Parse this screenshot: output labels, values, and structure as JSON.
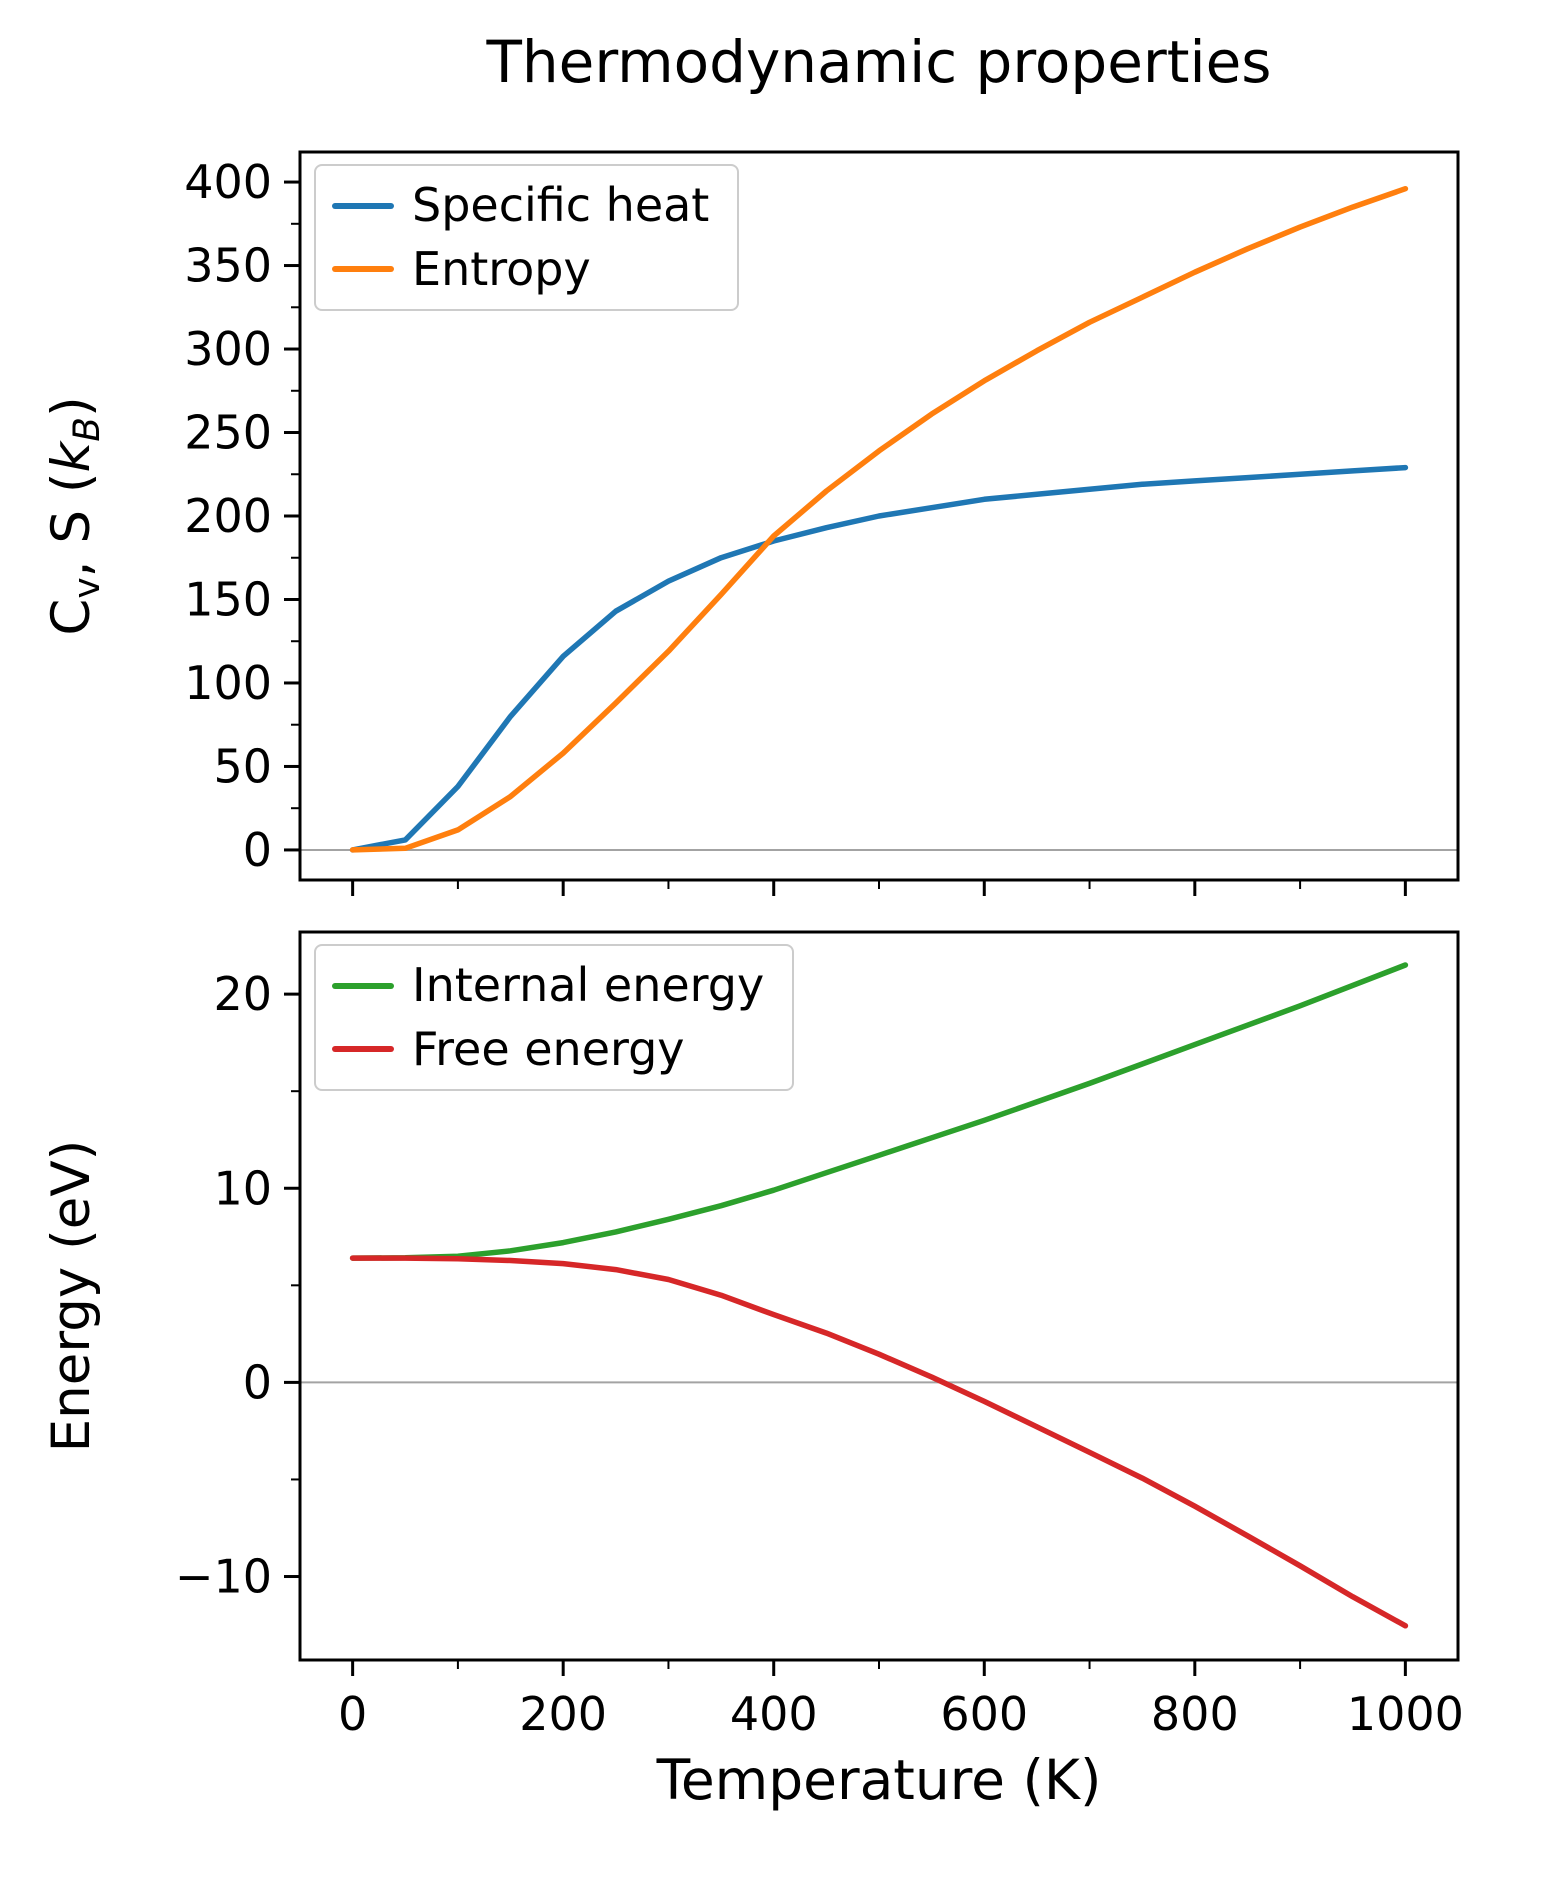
{
  "figure": {
    "title": "Thermodynamic properties",
    "xlabel": "Temperature (K)",
    "background": "#ffffff"
  },
  "chart_data": [
    {
      "type": "line",
      "title": "Thermodynamic properties",
      "xlabel": "",
      "ylabel": "C_v, S (k_B)",
      "ylabel_rich": [
        {
          "t": "C"
        },
        {
          "t": "v",
          "sub": true
        },
        {
          "t": ", S ("
        },
        {
          "t": "k",
          "italic": true
        },
        {
          "t": "B",
          "sub": true,
          "italic": true
        },
        {
          "t": ")"
        }
      ],
      "x": [
        0,
        50,
        100,
        150,
        200,
        250,
        300,
        350,
        400,
        450,
        500,
        550,
        600,
        650,
        700,
        750,
        800,
        850,
        900,
        950,
        1000
      ],
      "series": [
        {
          "name": "Specific heat",
          "color": "#1f77b4",
          "values": [
            0,
            6,
            38,
            80,
            116,
            143,
            161,
            175,
            185,
            193,
            200,
            205,
            210,
            213,
            216,
            219,
            221,
            223,
            225,
            227,
            229
          ]
        },
        {
          "name": "Entropy",
          "color": "#ff7f0e",
          "values": [
            0,
            1,
            12,
            32,
            58,
            88,
            119,
            153,
            188,
            215,
            239,
            261,
            281,
            299,
            316,
            331,
            346,
            360,
            373,
            385,
            396
          ]
        }
      ],
      "xlim": [
        -50,
        1050
      ],
      "ylim": [
        -18,
        418
      ],
      "xticks": [
        0,
        200,
        400,
        600,
        800,
        1000
      ],
      "yticks": [
        0,
        50,
        100,
        150,
        200,
        250,
        300,
        350,
        400
      ],
      "show_x_tick_labels": false,
      "legend": {
        "position": "upper-left",
        "entries": [
          "Specific heat",
          "Entropy"
        ]
      },
      "zero_line": true,
      "zero_line_color": "#a3a3a3",
      "grid": false
    },
    {
      "type": "line",
      "title": "",
      "xlabel": "Temperature (K)",
      "ylabel": "Energy (eV)",
      "ylabel_rich": [
        {
          "t": "Energy (eV)"
        }
      ],
      "x": [
        0,
        50,
        100,
        150,
        200,
        250,
        300,
        350,
        400,
        450,
        500,
        550,
        600,
        650,
        700,
        750,
        800,
        850,
        900,
        950,
        1000
      ],
      "series": [
        {
          "name": "Internal energy",
          "color": "#2ca02c",
          "values": [
            6.4,
            6.42,
            6.5,
            6.78,
            7.2,
            7.75,
            8.4,
            9.1,
            9.9,
            10.8,
            11.7,
            12.6,
            13.5,
            14.45,
            15.4,
            16.4,
            17.4,
            18.4,
            19.4,
            20.45,
            21.5
          ]
        },
        {
          "name": "Free energy",
          "color": "#d62728",
          "values": [
            6.4,
            6.4,
            6.37,
            6.28,
            6.12,
            5.81,
            5.3,
            4.49,
            3.49,
            2.54,
            1.45,
            0.28,
            -0.98,
            -2.29,
            -3.6,
            -4.93,
            -6.38,
            -7.9,
            -9.45,
            -11.04,
            -12.54
          ]
        }
      ],
      "xlim": [
        -50,
        1050
      ],
      "ylim": [
        -14.3,
        23.2
      ],
      "xticks": [
        0,
        200,
        400,
        600,
        800,
        1000
      ],
      "yticks": [
        -10,
        0,
        10,
        20
      ],
      "show_x_tick_labels": true,
      "legend": {
        "position": "upper-left",
        "entries": [
          "Internal energy",
          "Free energy"
        ]
      },
      "zero_line": true,
      "zero_line_color": "#a3a3a3",
      "grid": false
    }
  ]
}
